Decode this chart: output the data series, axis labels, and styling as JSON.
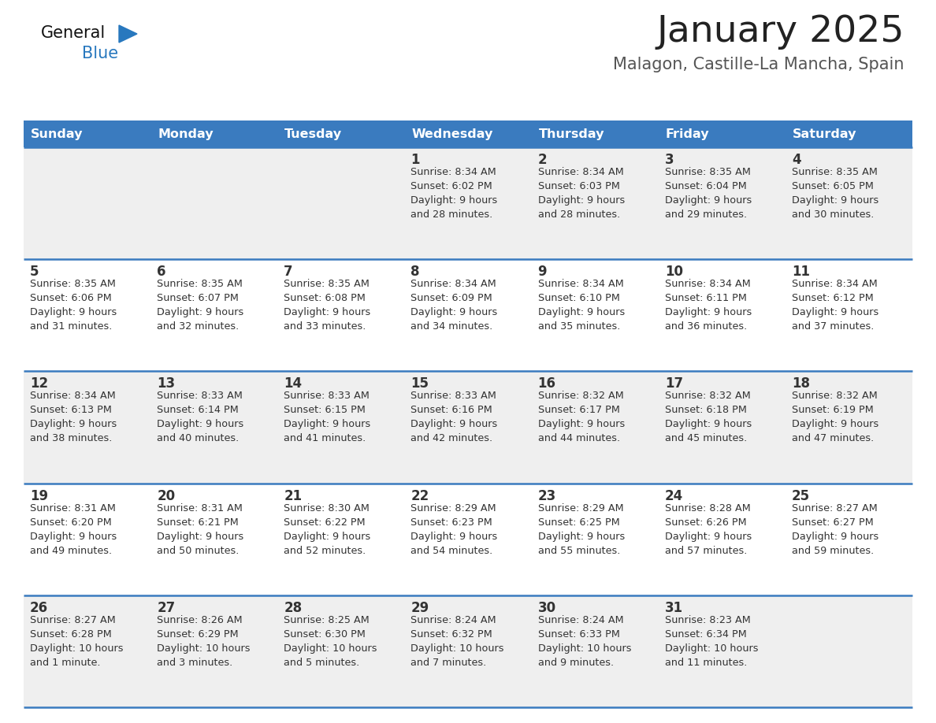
{
  "title": "January 2025",
  "subtitle": "Malagon, Castille-La Mancha, Spain",
  "days_of_week": [
    "Sunday",
    "Monday",
    "Tuesday",
    "Wednesday",
    "Thursday",
    "Friday",
    "Saturday"
  ],
  "header_bg": "#3a7bbf",
  "header_text": "#ffffff",
  "row_bg_odd": "#efefef",
  "row_bg_even": "#ffffff",
  "cell_text": "#333333",
  "separator_color": "#3a7bbf",
  "title_color": "#222222",
  "subtitle_color": "#555555",
  "logo_general_color": "#111111",
  "logo_blue_color": "#2878be",
  "calendar_data": [
    [
      {
        "day": "",
        "info": ""
      },
      {
        "day": "",
        "info": ""
      },
      {
        "day": "",
        "info": ""
      },
      {
        "day": "1",
        "info": "Sunrise: 8:34 AM\nSunset: 6:02 PM\nDaylight: 9 hours\nand 28 minutes."
      },
      {
        "day": "2",
        "info": "Sunrise: 8:34 AM\nSunset: 6:03 PM\nDaylight: 9 hours\nand 28 minutes."
      },
      {
        "day": "3",
        "info": "Sunrise: 8:35 AM\nSunset: 6:04 PM\nDaylight: 9 hours\nand 29 minutes."
      },
      {
        "day": "4",
        "info": "Sunrise: 8:35 AM\nSunset: 6:05 PM\nDaylight: 9 hours\nand 30 minutes."
      }
    ],
    [
      {
        "day": "5",
        "info": "Sunrise: 8:35 AM\nSunset: 6:06 PM\nDaylight: 9 hours\nand 31 minutes."
      },
      {
        "day": "6",
        "info": "Sunrise: 8:35 AM\nSunset: 6:07 PM\nDaylight: 9 hours\nand 32 minutes."
      },
      {
        "day": "7",
        "info": "Sunrise: 8:35 AM\nSunset: 6:08 PM\nDaylight: 9 hours\nand 33 minutes."
      },
      {
        "day": "8",
        "info": "Sunrise: 8:34 AM\nSunset: 6:09 PM\nDaylight: 9 hours\nand 34 minutes."
      },
      {
        "day": "9",
        "info": "Sunrise: 8:34 AM\nSunset: 6:10 PM\nDaylight: 9 hours\nand 35 minutes."
      },
      {
        "day": "10",
        "info": "Sunrise: 8:34 AM\nSunset: 6:11 PM\nDaylight: 9 hours\nand 36 minutes."
      },
      {
        "day": "11",
        "info": "Sunrise: 8:34 AM\nSunset: 6:12 PM\nDaylight: 9 hours\nand 37 minutes."
      }
    ],
    [
      {
        "day": "12",
        "info": "Sunrise: 8:34 AM\nSunset: 6:13 PM\nDaylight: 9 hours\nand 38 minutes."
      },
      {
        "day": "13",
        "info": "Sunrise: 8:33 AM\nSunset: 6:14 PM\nDaylight: 9 hours\nand 40 minutes."
      },
      {
        "day": "14",
        "info": "Sunrise: 8:33 AM\nSunset: 6:15 PM\nDaylight: 9 hours\nand 41 minutes."
      },
      {
        "day": "15",
        "info": "Sunrise: 8:33 AM\nSunset: 6:16 PM\nDaylight: 9 hours\nand 42 minutes."
      },
      {
        "day": "16",
        "info": "Sunrise: 8:32 AM\nSunset: 6:17 PM\nDaylight: 9 hours\nand 44 minutes."
      },
      {
        "day": "17",
        "info": "Sunrise: 8:32 AM\nSunset: 6:18 PM\nDaylight: 9 hours\nand 45 minutes."
      },
      {
        "day": "18",
        "info": "Sunrise: 8:32 AM\nSunset: 6:19 PM\nDaylight: 9 hours\nand 47 minutes."
      }
    ],
    [
      {
        "day": "19",
        "info": "Sunrise: 8:31 AM\nSunset: 6:20 PM\nDaylight: 9 hours\nand 49 minutes."
      },
      {
        "day": "20",
        "info": "Sunrise: 8:31 AM\nSunset: 6:21 PM\nDaylight: 9 hours\nand 50 minutes."
      },
      {
        "day": "21",
        "info": "Sunrise: 8:30 AM\nSunset: 6:22 PM\nDaylight: 9 hours\nand 52 minutes."
      },
      {
        "day": "22",
        "info": "Sunrise: 8:29 AM\nSunset: 6:23 PM\nDaylight: 9 hours\nand 54 minutes."
      },
      {
        "day": "23",
        "info": "Sunrise: 8:29 AM\nSunset: 6:25 PM\nDaylight: 9 hours\nand 55 minutes."
      },
      {
        "day": "24",
        "info": "Sunrise: 8:28 AM\nSunset: 6:26 PM\nDaylight: 9 hours\nand 57 minutes."
      },
      {
        "day": "25",
        "info": "Sunrise: 8:27 AM\nSunset: 6:27 PM\nDaylight: 9 hours\nand 59 minutes."
      }
    ],
    [
      {
        "day": "26",
        "info": "Sunrise: 8:27 AM\nSunset: 6:28 PM\nDaylight: 10 hours\nand 1 minute."
      },
      {
        "day": "27",
        "info": "Sunrise: 8:26 AM\nSunset: 6:29 PM\nDaylight: 10 hours\nand 3 minutes."
      },
      {
        "day": "28",
        "info": "Sunrise: 8:25 AM\nSunset: 6:30 PM\nDaylight: 10 hours\nand 5 minutes."
      },
      {
        "day": "29",
        "info": "Sunrise: 8:24 AM\nSunset: 6:32 PM\nDaylight: 10 hours\nand 7 minutes."
      },
      {
        "day": "30",
        "info": "Sunrise: 8:24 AM\nSunset: 6:33 PM\nDaylight: 10 hours\nand 9 minutes."
      },
      {
        "day": "31",
        "info": "Sunrise: 8:23 AM\nSunset: 6:34 PM\nDaylight: 10 hours\nand 11 minutes."
      },
      {
        "day": "",
        "info": ""
      }
    ]
  ]
}
